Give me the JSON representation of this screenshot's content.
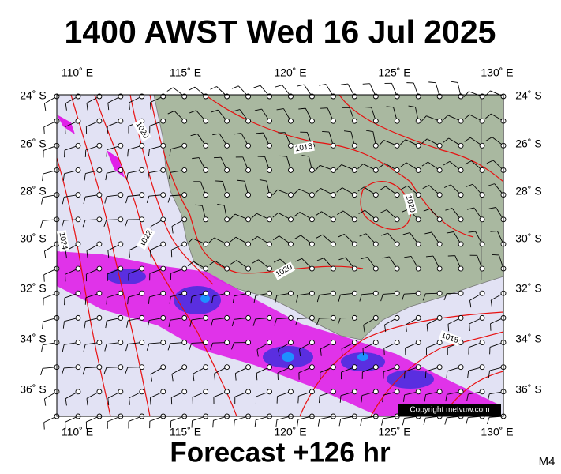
{
  "header": {
    "title": "1400 AWST Wed 16 Jul 2025"
  },
  "footer": {
    "forecast": "Forecast +126 hr",
    "model": "M4"
  },
  "map": {
    "lon_labels": [
      "110˚ E",
      "115˚ E",
      "120˚ E",
      "125˚ E",
      "130˚ E"
    ],
    "lat_labels": [
      "24˚ S",
      "26˚ S",
      "28˚ S",
      "30˚ S",
      "32˚ S",
      "34˚ S",
      "36˚ S"
    ],
    "isobar_labels": [
      "1020",
      "1018",
      "1020",
      "1022",
      "1024",
      "1020",
      "1018"
    ],
    "copyright": "Copyright metvuw.com"
  }
}
